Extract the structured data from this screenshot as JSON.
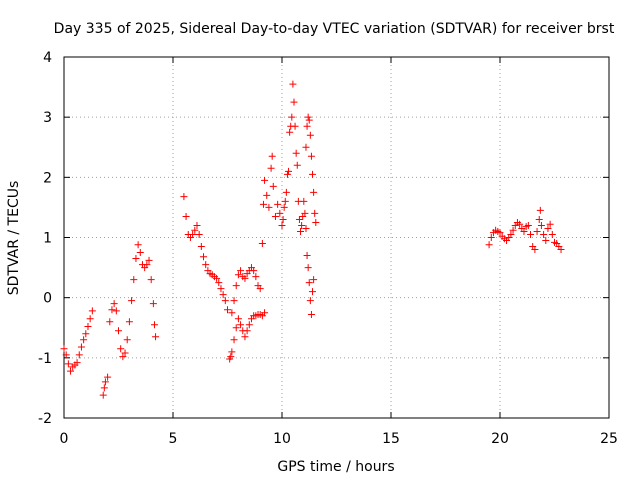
{
  "chart_data": {
    "type": "scatter",
    "title": "Day 335 of 2025, Sidereal Day-to-day VTEC variation (SDTVAR) for receiver brst",
    "xlabel": "GPS time / hours",
    "ylabel": "SDTVAR / TECUs",
    "xlim": [
      0,
      25
    ],
    "ylim": [
      -2,
      4
    ],
    "xticks": [
      0,
      5,
      10,
      15,
      20,
      25
    ],
    "yticks": [
      -2,
      -1,
      0,
      1,
      2,
      3,
      4
    ],
    "xtick_labels": [
      "0",
      "5",
      "10",
      "15",
      "20",
      "25"
    ],
    "ytick_labels": [
      "-2",
      "-1",
      "0",
      "1",
      "2",
      "3",
      "4"
    ],
    "grid": true,
    "marker": "+",
    "color": "#ff0000",
    "series": [
      {
        "name": "SDTVAR",
        "points": [
          [
            0.0,
            -0.85
          ],
          [
            0.1,
            -0.95
          ],
          [
            0.2,
            -1.1
          ],
          [
            0.3,
            -1.22
          ],
          [
            0.4,
            -1.15
          ],
          [
            0.5,
            -1.12
          ],
          [
            0.6,
            -1.08
          ],
          [
            0.7,
            -0.95
          ],
          [
            0.8,
            -0.82
          ],
          [
            0.9,
            -0.7
          ],
          [
            1.0,
            -0.6
          ],
          [
            1.1,
            -0.48
          ],
          [
            1.2,
            -0.35
          ],
          [
            1.3,
            -0.22
          ],
          [
            1.8,
            -1.62
          ],
          [
            1.85,
            -1.5
          ],
          [
            1.9,
            -1.4
          ],
          [
            2.0,
            -1.32
          ],
          [
            2.1,
            -0.4
          ],
          [
            2.2,
            -0.2
          ],
          [
            2.3,
            -0.1
          ],
          [
            2.4,
            -0.22
          ],
          [
            2.5,
            -0.55
          ],
          [
            2.6,
            -0.85
          ],
          [
            2.7,
            -0.98
          ],
          [
            2.8,
            -0.92
          ],
          [
            2.9,
            -0.7
          ],
          [
            3.0,
            -0.4
          ],
          [
            3.1,
            -0.05
          ],
          [
            3.2,
            0.3
          ],
          [
            3.3,
            0.65
          ],
          [
            3.4,
            0.88
          ],
          [
            3.5,
            0.75
          ],
          [
            3.6,
            0.55
          ],
          [
            3.7,
            0.5
          ],
          [
            3.8,
            0.55
          ],
          [
            3.9,
            0.62
          ],
          [
            4.0,
            0.3
          ],
          [
            4.1,
            -0.1
          ],
          [
            4.15,
            -0.45
          ],
          [
            4.2,
            -0.65
          ],
          [
            5.5,
            1.68
          ],
          [
            5.6,
            1.35
          ],
          [
            5.7,
            1.05
          ],
          [
            5.8,
            1.0
          ],
          [
            5.9,
            1.05
          ],
          [
            6.0,
            1.12
          ],
          [
            6.1,
            1.2
          ],
          [
            6.2,
            1.05
          ],
          [
            6.3,
            0.85
          ],
          [
            6.4,
            0.68
          ],
          [
            6.5,
            0.55
          ],
          [
            6.6,
            0.45
          ],
          [
            6.7,
            0.4
          ],
          [
            6.8,
            0.38
          ],
          [
            6.9,
            0.35
          ],
          [
            7.0,
            0.32
          ],
          [
            7.1,
            0.25
          ],
          [
            7.2,
            0.15
          ],
          [
            7.3,
            0.05
          ],
          [
            7.4,
            -0.05
          ],
          [
            7.5,
            -0.2
          ],
          [
            7.6,
            -1.02
          ],
          [
            7.65,
            -0.98
          ],
          [
            7.7,
            -0.9
          ],
          [
            7.8,
            -0.7
          ],
          [
            7.9,
            -0.5
          ],
          [
            8.0,
            -0.35
          ],
          [
            7.7,
            -0.25
          ],
          [
            7.8,
            -0.05
          ],
          [
            7.9,
            0.2
          ],
          [
            8.0,
            0.38
          ],
          [
            8.1,
            0.45
          ],
          [
            8.2,
            0.35
          ],
          [
            8.3,
            0.32
          ],
          [
            8.4,
            0.4
          ],
          [
            8.5,
            0.45
          ],
          [
            8.6,
            0.5
          ],
          [
            8.7,
            0.45
          ],
          [
            8.8,
            0.35
          ],
          [
            8.9,
            0.2
          ],
          [
            8.1,
            -0.45
          ],
          [
            8.2,
            -0.55
          ],
          [
            8.3,
            -0.65
          ],
          [
            8.4,
            -0.55
          ],
          [
            8.5,
            -0.45
          ],
          [
            8.6,
            -0.35
          ],
          [
            8.7,
            -0.3
          ],
          [
            8.8,
            -0.3
          ],
          [
            8.9,
            -0.28
          ],
          [
            9.0,
            -0.28
          ],
          [
            9.1,
            -0.3
          ],
          [
            9.2,
            -0.25
          ],
          [
            9.0,
            0.15
          ],
          [
            9.1,
            0.9
          ],
          [
            9.15,
            1.55
          ],
          [
            9.2,
            1.95
          ],
          [
            9.3,
            1.7
          ],
          [
            9.4,
            1.5
          ],
          [
            9.5,
            2.15
          ],
          [
            9.55,
            2.35
          ],
          [
            9.6,
            1.85
          ],
          [
            9.7,
            1.35
          ],
          [
            9.8,
            1.55
          ],
          [
            9.9,
            1.4
          ],
          [
            10.0,
            1.2
          ],
          [
            10.05,
            1.3
          ],
          [
            10.1,
            1.5
          ],
          [
            10.15,
            1.6
          ],
          [
            10.2,
            1.75
          ],
          [
            10.25,
            2.05
          ],
          [
            10.3,
            2.1
          ],
          [
            10.35,
            2.75
          ],
          [
            10.4,
            2.85
          ],
          [
            10.45,
            3.0
          ],
          [
            10.5,
            3.55
          ],
          [
            10.55,
            3.25
          ],
          [
            10.6,
            2.85
          ],
          [
            10.65,
            2.4
          ],
          [
            10.7,
            2.2
          ],
          [
            10.75,
            1.6
          ],
          [
            10.8,
            1.3
          ],
          [
            10.85,
            1.1
          ],
          [
            10.9,
            1.2
          ],
          [
            10.95,
            1.35
          ],
          [
            11.0,
            1.6
          ],
          [
            11.05,
            1.4
          ],
          [
            11.1,
            1.15
          ],
          [
            11.15,
            0.7
          ],
          [
            11.2,
            0.5
          ],
          [
            11.25,
            0.25
          ],
          [
            11.3,
            -0.05
          ],
          [
            11.35,
            -0.28
          ],
          [
            11.4,
            0.1
          ],
          [
            11.45,
            0.3
          ],
          [
            11.1,
            2.5
          ],
          [
            11.15,
            2.85
          ],
          [
            11.2,
            3.0
          ],
          [
            11.25,
            2.95
          ],
          [
            11.3,
            2.7
          ],
          [
            11.35,
            2.35
          ],
          [
            11.4,
            2.05
          ],
          [
            11.45,
            1.75
          ],
          [
            11.5,
            1.4
          ],
          [
            11.55,
            1.25
          ],
          [
            19.5,
            0.88
          ],
          [
            19.6,
            1.0
          ],
          [
            19.7,
            1.08
          ],
          [
            19.8,
            1.12
          ],
          [
            19.9,
            1.1
          ],
          [
            20.0,
            1.08
          ],
          [
            20.1,
            1.02
          ],
          [
            20.2,
            0.98
          ],
          [
            20.3,
            0.95
          ],
          [
            20.4,
            1.0
          ],
          [
            20.5,
            1.05
          ],
          [
            20.6,
            1.12
          ],
          [
            20.7,
            1.2
          ],
          [
            20.8,
            1.25
          ],
          [
            20.9,
            1.22
          ],
          [
            21.0,
            1.15
          ],
          [
            21.1,
            1.1
          ],
          [
            21.2,
            1.18
          ],
          [
            21.3,
            1.2
          ],
          [
            21.4,
            1.05
          ],
          [
            21.5,
            0.85
          ],
          [
            21.6,
            0.8
          ],
          [
            21.7,
            1.1
          ],
          [
            21.8,
            1.3
          ],
          [
            21.85,
            1.45
          ],
          [
            21.9,
            1.2
          ],
          [
            22.0,
            1.05
          ],
          [
            22.1,
            0.95
          ],
          [
            22.2,
            1.15
          ],
          [
            22.3,
            1.22
          ],
          [
            22.4,
            1.05
          ],
          [
            22.5,
            0.92
          ],
          [
            22.6,
            0.9
          ],
          [
            22.7,
            0.85
          ],
          [
            22.8,
            0.8
          ]
        ]
      }
    ]
  }
}
